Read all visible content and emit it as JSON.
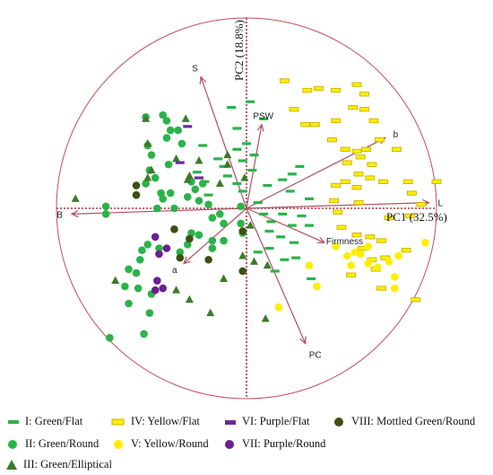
{
  "chart_data": {
    "type": "scatter",
    "xlabel": "PC1 (32.5%)",
    "ylabel": "PC2 (18.8%)",
    "xlim": [
      -1.05,
      1.05
    ],
    "ylim": [
      -1.05,
      1.05
    ],
    "grid": false,
    "legend_position": "bottom",
    "colors": {
      "circle": "#c0505a",
      "axis": "#b03040",
      "vector": "#b05060",
      "green": "#2bb34a",
      "dark_green": "#3d7a2a",
      "yellow": "#ffee00",
      "yellow_edge": "#c9b200",
      "purple_flat": "#6a2a9a",
      "purple_round": "#6a2090",
      "mottled": "#3f4f12"
    },
    "loadings": [
      {
        "label": "S",
        "x": -0.24,
        "y": 0.69
      },
      {
        "label": "PSW",
        "x": 0.08,
        "y": 0.44
      },
      {
        "label": "b",
        "x": 0.73,
        "y": 0.37
      },
      {
        "label": "L",
        "x": 0.96,
        "y": 0.03
      },
      {
        "label": "B",
        "x": -0.92,
        "y": -0.03
      },
      {
        "label": "Firmness",
        "x": 0.41,
        "y": -0.18
      },
      {
        "label": "a",
        "x": -0.33,
        "y": -0.29
      },
      {
        "label": "PC",
        "x": 0.31,
        "y": -0.71
      }
    ],
    "series": [
      {
        "name": "I: Green/Flat",
        "marker": "bar",
        "points": [
          [
            -0.08,
            0.53
          ],
          [
            0.02,
            0.56
          ],
          [
            0.09,
            0.47
          ],
          [
            -0.05,
            0.42
          ],
          [
            0.0,
            0.34
          ],
          [
            -0.05,
            0.31
          ],
          [
            0.04,
            0.28
          ],
          [
            -0.02,
            0.25
          ],
          [
            -0.15,
            0.26
          ],
          [
            -0.12,
            0.22
          ],
          [
            -0.23,
            0.33
          ],
          [
            -0.26,
            0.19
          ],
          [
            -0.22,
            0.14
          ],
          [
            -0.1,
            0.17
          ],
          [
            -0.05,
            0.13
          ],
          [
            -0.02,
            0.09
          ],
          [
            0.19,
            0.15
          ],
          [
            0.24,
            0.18
          ],
          [
            0.28,
            0.22
          ],
          [
            0.23,
            0.09
          ],
          [
            0.11,
            0.12
          ],
          [
            0.33,
            0.05
          ],
          [
            0.06,
            0.03
          ],
          [
            0.09,
            -0.03
          ],
          [
            0.13,
            -0.07
          ],
          [
            0.19,
            -0.03
          ],
          [
            0.29,
            -0.04
          ],
          [
            0.24,
            -0.09
          ],
          [
            0.33,
            -0.09
          ],
          [
            0.12,
            -0.12
          ],
          [
            0.18,
            -0.15
          ],
          [
            0.25,
            -0.18
          ],
          [
            0.12,
            -0.21
          ],
          [
            0.2,
            -0.27
          ],
          [
            0.26,
            -0.26
          ],
          [
            0.06,
            -0.23
          ],
          [
            0.15,
            -0.33
          ],
          [
            0.34,
            -0.37
          ],
          [
            0.03,
            0.2
          ],
          [
            -0.2,
            0.07
          ]
        ]
      },
      {
        "name": "II: Green/Round",
        "marker": "circle",
        "points": [
          [
            -0.44,
            0.49
          ],
          [
            -0.42,
            0.46
          ],
          [
            -0.4,
            0.41
          ],
          [
            -0.36,
            0.41
          ],
          [
            -0.42,
            0.37
          ],
          [
            -0.34,
            0.34
          ],
          [
            -0.52,
            0.33
          ],
          [
            -0.5,
            0.28
          ],
          [
            -0.51,
            0.2
          ],
          [
            -0.48,
            0.16
          ],
          [
            -0.53,
            0.13
          ],
          [
            -0.45,
            0.08
          ],
          [
            -0.47,
            0.0
          ],
          [
            -0.44,
            0.05
          ],
          [
            -0.4,
            0.08
          ],
          [
            -0.38,
            0.0
          ],
          [
            -0.31,
            0.06
          ],
          [
            -0.29,
            0.14
          ],
          [
            -0.27,
            0.1
          ],
          [
            -0.25,
            0.04
          ],
          [
            -0.2,
            0.02
          ],
          [
            -0.18,
            -0.05
          ],
          [
            -0.14,
            -0.03
          ],
          [
            -0.12,
            -0.08
          ],
          [
            -0.03,
            0.01
          ],
          [
            -0.03,
            -0.08
          ],
          [
            -0.02,
            -0.13
          ],
          [
            -0.12,
            -0.17
          ],
          [
            -0.18,
            -0.21
          ],
          [
            -0.25,
            -0.14
          ],
          [
            -0.29,
            -0.13
          ],
          [
            -0.31,
            -0.19
          ],
          [
            -0.35,
            -0.23
          ],
          [
            -0.46,
            -0.21
          ],
          [
            -0.52,
            -0.19
          ],
          [
            -0.55,
            -0.22
          ],
          [
            -0.56,
            -0.27
          ],
          [
            -0.58,
            -0.34
          ],
          [
            -0.62,
            -0.32
          ],
          [
            -0.64,
            -0.41
          ],
          [
            -0.62,
            -0.5
          ],
          [
            -0.57,
            -0.42
          ],
          [
            -0.5,
            -0.45
          ],
          [
            -0.51,
            -0.55
          ],
          [
            -0.54,
            -0.66
          ],
          [
            -0.72,
            -0.68
          ],
          [
            -0.74,
            -0.03
          ],
          [
            -0.74,
            0.01
          ],
          [
            -0.53,
            0.48
          ],
          [
            -0.23,
            0.13
          ],
          [
            -0.41,
            0.23
          ],
          [
            -0.18,
            -0.17
          ]
        ]
      },
      {
        "name": "III: Green/Elliptical",
        "marker": "triangle",
        "points": [
          [
            -0.53,
            0.47
          ],
          [
            -0.32,
            0.47
          ],
          [
            -0.52,
            0.34
          ],
          [
            -0.5,
            0.2
          ],
          [
            -0.52,
            0.16
          ],
          [
            -0.31,
            0.15
          ],
          [
            -0.3,
            0.17
          ],
          [
            -0.37,
            0.26
          ],
          [
            -0.25,
            0.25
          ],
          [
            -0.1,
            0.23
          ],
          [
            -0.1,
            0.28
          ],
          [
            -0.14,
            0.13
          ],
          [
            -0.01,
            0.16
          ],
          [
            0.02,
            -0.09
          ],
          [
            -0.02,
            -0.25
          ],
          [
            0.04,
            -0.28
          ],
          [
            0.11,
            -0.3
          ],
          [
            -0.12,
            -0.37
          ],
          [
            -0.37,
            -0.43
          ],
          [
            -0.3,
            -0.48
          ],
          [
            -0.19,
            -0.55
          ],
          [
            0.1,
            -0.58
          ],
          [
            -0.69,
            -0.38
          ],
          [
            -0.9,
            0.05
          ]
        ]
      },
      {
        "name": "IV: Yellow/Flat",
        "marker": "rect",
        "points": [
          [
            0.2,
            0.67
          ],
          [
            0.32,
            0.62
          ],
          [
            0.38,
            0.63
          ],
          [
            0.47,
            0.62
          ],
          [
            0.58,
            0.65
          ],
          [
            0.62,
            0.6
          ],
          [
            0.25,
            0.52
          ],
          [
            0.31,
            0.44
          ],
          [
            0.36,
            0.44
          ],
          [
            0.47,
            0.46
          ],
          [
            0.56,
            0.53
          ],
          [
            0.62,
            0.52
          ],
          [
            0.67,
            0.46
          ],
          [
            0.45,
            0.36
          ],
          [
            0.52,
            0.31
          ],
          [
            0.58,
            0.3
          ],
          [
            0.63,
            0.31
          ],
          [
            0.53,
            0.24
          ],
          [
            0.6,
            0.27
          ],
          [
            0.7,
            0.36
          ],
          [
            0.79,
            0.31
          ],
          [
            0.66,
            0.23
          ],
          [
            0.59,
            0.18
          ],
          [
            0.65,
            0.16
          ],
          [
            0.47,
            0.12
          ],
          [
            0.52,
            0.14
          ],
          [
            0.58,
            0.11
          ],
          [
            0.72,
            0.14
          ],
          [
            0.85,
            0.14
          ],
          [
            1.0,
            0.14
          ],
          [
            0.87,
            0.08
          ],
          [
            0.92,
            0.02
          ],
          [
            0.46,
            0.04
          ],
          [
            0.59,
            0.03
          ],
          [
            0.48,
            -0.02
          ],
          [
            0.5,
            -0.1
          ],
          [
            0.58,
            -0.14
          ],
          [
            0.65,
            -0.15
          ],
          [
            0.71,
            -0.17
          ],
          [
            0.61,
            -0.21
          ],
          [
            0.66,
            -0.27
          ],
          [
            0.73,
            -0.26
          ],
          [
            0.68,
            -0.32
          ],
          [
            0.84,
            -0.22
          ],
          [
            0.71,
            -0.42
          ],
          [
            0.55,
            -0.35
          ],
          [
            0.89,
            -0.48
          ],
          [
            0.75,
            -0.05
          ],
          [
            0.86,
            -0.04
          ]
        ]
      },
      {
        "name": "V: Yellow/Round",
        "marker": "circle",
        "points": [
          [
            0.47,
            -0.2
          ],
          [
            0.53,
            -0.25
          ],
          [
            0.57,
            -0.23
          ],
          [
            0.6,
            -0.24
          ],
          [
            0.64,
            -0.2
          ],
          [
            0.64,
            -0.29
          ],
          [
            0.69,
            -0.31
          ],
          [
            0.75,
            -0.28
          ],
          [
            0.8,
            -0.25
          ],
          [
            0.94,
            -0.18
          ],
          [
            0.33,
            -0.3
          ],
          [
            0.78,
            -0.36
          ],
          [
            0.78,
            -0.42
          ],
          [
            0.37,
            -0.41
          ],
          [
            0.17,
            -0.52
          ],
          [
            0.55,
            -0.3
          ]
        ]
      },
      {
        "name": "VI: Purple/Flat",
        "marker": "bar",
        "points": [
          [
            -0.31,
            0.43
          ],
          [
            -0.35,
            0.24
          ],
          [
            -0.25,
            0.16
          ]
        ]
      },
      {
        "name": "VII: Purple/Round",
        "marker": "circle",
        "points": [
          [
            -0.48,
            -0.15
          ],
          [
            -0.46,
            -0.24
          ],
          [
            -0.42,
            -0.21
          ],
          [
            -0.47,
            -0.38
          ],
          [
            -0.48,
            -0.43
          ],
          [
            -0.44,
            -0.42
          ]
        ]
      },
      {
        "name": "VIII: Mottled Green/Round",
        "marker": "circle",
        "points": [
          [
            -0.58,
            0.07
          ],
          [
            -0.58,
            0.12
          ],
          [
            -0.38,
            -0.11
          ],
          [
            -0.3,
            -0.16
          ],
          [
            -0.35,
            -0.26
          ],
          [
            -0.02,
            -0.12
          ],
          [
            -0.02,
            -0.33
          ],
          [
            -0.2,
            -0.27
          ]
        ]
      }
    ]
  },
  "legend": [
    {
      "label": "I: Green/Flat",
      "marker": "bar-green"
    },
    {
      "label": "II: Green/Round",
      "marker": "circle-green"
    },
    {
      "label": "III: Green/Elliptical",
      "marker": "triangle-darkgreen"
    },
    {
      "label": "IV: Yellow/Flat",
      "marker": "rect-yellow"
    },
    {
      "label": "V: Yellow/Round",
      "marker": "circle-yellow"
    },
    {
      "label": "VI: Purple/Flat",
      "marker": "bar-purple"
    },
    {
      "label": "VII: Purple/Round",
      "marker": "circle-purple"
    },
    {
      "label": "VIII: Mottled Green/Round",
      "marker": "circle-mottled"
    }
  ]
}
